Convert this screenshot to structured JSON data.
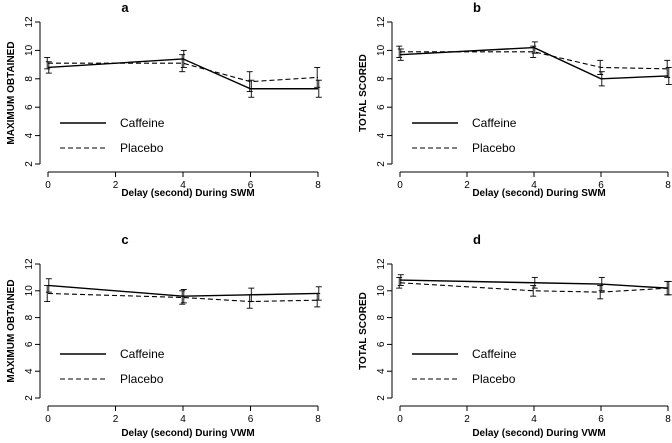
{
  "chart_data": [
    {
      "type": "line",
      "panel": "a",
      "title": "a",
      "xlabel": "Delay (second) During SWM",
      "ylabel": "MAXIMUM OBTAINED",
      "xlim": [
        0,
        8
      ],
      "ylim": [
        2,
        12
      ],
      "xticks": [
        0,
        2,
        4,
        6,
        8
      ],
      "yticks": [
        2,
        4,
        6,
        8,
        10,
        12
      ],
      "x": [
        0,
        4,
        6,
        8
      ],
      "legend_position": "lower-left",
      "series": [
        {
          "name": "Caffeine",
          "style": "solid",
          "values": [
            8.8,
            9.4,
            7.3,
            7.3
          ],
          "err": [
            0.4,
            0.6,
            0.6,
            0.6
          ]
        },
        {
          "name": "Placebo",
          "style": "dashed",
          "values": [
            9.1,
            9.1,
            7.8,
            8.1
          ],
          "err": [
            0.4,
            0.6,
            0.7,
            0.7
          ]
        }
      ]
    },
    {
      "type": "line",
      "panel": "b",
      "title": "b",
      "xlabel": "Delay (second) During SWM",
      "ylabel": "TOTAL SCORED",
      "xlim": [
        0,
        8
      ],
      "ylim": [
        2,
        12
      ],
      "xticks": [
        0,
        2,
        4,
        6,
        8
      ],
      "yticks": [
        2,
        4,
        6,
        8,
        10,
        12
      ],
      "x": [
        0,
        4,
        6,
        8
      ],
      "legend_position": "lower-left",
      "series": [
        {
          "name": "Caffeine",
          "style": "solid",
          "values": [
            9.7,
            10.2,
            8.0,
            8.2
          ],
          "err": [
            0.4,
            0.4,
            0.5,
            0.6
          ]
        },
        {
          "name": "Placebo",
          "style": "dashed",
          "values": [
            9.9,
            9.9,
            8.8,
            8.7
          ],
          "err": [
            0.4,
            0.4,
            0.5,
            0.6
          ]
        }
      ]
    },
    {
      "type": "line",
      "panel": "c",
      "title": "c",
      "xlabel": "Delay (second) During VWM",
      "ylabel": "MAXIMUM OBTAINED",
      "xlim": [
        0,
        8
      ],
      "ylim": [
        2,
        12
      ],
      "xticks": [
        0,
        2,
        4,
        6,
        8
      ],
      "yticks": [
        2,
        4,
        6,
        8,
        10,
        12
      ],
      "x": [
        0,
        4,
        6,
        8
      ],
      "legend_position": "lower-left",
      "series": [
        {
          "name": "Caffeine",
          "style": "solid",
          "values": [
            10.4,
            9.6,
            9.7,
            9.8
          ],
          "err": [
            0.5,
            0.5,
            0.5,
            0.5
          ]
        },
        {
          "name": "Placebo",
          "style": "dashed",
          "values": [
            9.8,
            9.5,
            9.2,
            9.3
          ],
          "err": [
            0.6,
            0.5,
            0.5,
            0.5
          ]
        }
      ]
    },
    {
      "type": "line",
      "panel": "d",
      "title": "d",
      "xlabel": "Delay (second) During VWM",
      "ylabel": "TOTAL SCORED",
      "xlim": [
        0,
        8
      ],
      "ylim": [
        2,
        12
      ],
      "xticks": [
        0,
        2,
        4,
        6,
        8
      ],
      "yticks": [
        2,
        4,
        6,
        8,
        10,
        12
      ],
      "x": [
        0,
        4,
        6,
        8
      ],
      "legend_position": "lower-left",
      "series": [
        {
          "name": "Caffeine",
          "style": "solid",
          "values": [
            10.8,
            10.6,
            10.5,
            10.2
          ],
          "err": [
            0.4,
            0.4,
            0.5,
            0.5
          ]
        },
        {
          "name": "Placebo",
          "style": "dashed",
          "values": [
            10.6,
            10.0,
            9.9,
            10.2
          ],
          "err": [
            0.4,
            0.4,
            0.5,
            0.5
          ]
        }
      ]
    }
  ]
}
